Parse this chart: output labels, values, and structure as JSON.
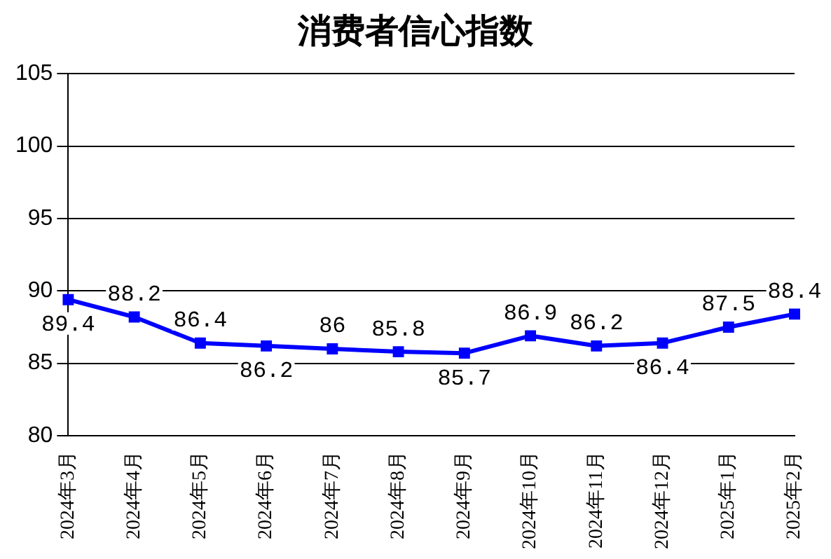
{
  "chart_data": {
    "type": "line",
    "title": "消费者信心指数",
    "categories": [
      "2024年3月",
      "2024年4月",
      "2024年5月",
      "2024年6月",
      "2024年7月",
      "2024年8月",
      "2024年9月",
      "2024年10月",
      "2024年11月",
      "2024年12月",
      "2025年1月",
      "2025年2月"
    ],
    "series": [
      {
        "color": "#0000ff",
        "values": [
          89.4,
          88.2,
          86.4,
          86.2,
          86,
          85.8,
          85.7,
          86.9,
          86.2,
          86.4,
          87.5,
          88.4
        ]
      }
    ],
    "ylim": [
      80,
      105
    ],
    "yticks": [
      80,
      85,
      90,
      95,
      100,
      105
    ],
    "grid": "y",
    "legend": false,
    "marker": "square",
    "line_style": "solid",
    "data_labels": true
  }
}
